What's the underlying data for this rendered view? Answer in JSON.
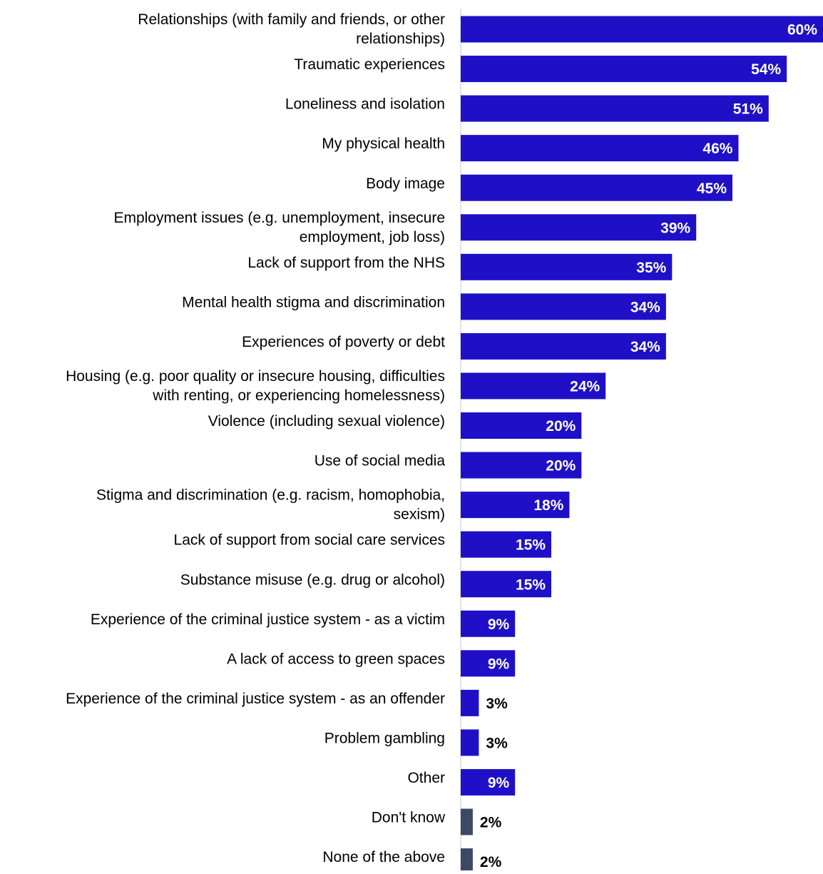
{
  "chart_data": {
    "type": "bar",
    "orientation": "horizontal",
    "categories": [
      "Relationships (with family and friends, or other relationships)",
      "Traumatic experiences",
      "Loneliness and isolation",
      "My physical health",
      "Body image",
      "Employment issues (e.g. unemployment, insecure employment, job loss)",
      "Lack of support from the NHS",
      "Mental health stigma and discrimination",
      "Experiences of poverty or debt",
      "Housing (e.g. poor quality or insecure housing, difficulties with renting, or experiencing homelessness)",
      "Violence (including sexual violence)",
      "Use of social media",
      "Stigma and discrimination (e.g. racism, homophobia, sexism)",
      "Lack of support from social care services",
      "Substance misuse (e.g. drug or alcohol)",
      "Experience of the criminal justice system - as a victim",
      "A lack of access to green spaces",
      "Experience of the criminal justice system - as an offender",
      "Problem gambling",
      "Other",
      "Don't know",
      "None of the above"
    ],
    "category_lines": [
      [
        "Relationships (with family and friends, or other",
        "relationships)"
      ],
      [
        "Traumatic experiences"
      ],
      [
        "Loneliness and isolation"
      ],
      [
        "My physical health"
      ],
      [
        "Body image"
      ],
      [
        "Employment issues (e.g. unemployment, insecure",
        "employment, job loss)"
      ],
      [
        "Lack of support from the NHS"
      ],
      [
        "Mental health stigma and discrimination"
      ],
      [
        "Experiences of poverty or debt"
      ],
      [
        "Housing (e.g. poor quality or insecure housing, difficulties",
        "with renting, or experiencing homelessness)"
      ],
      [
        "Violence (including sexual violence)"
      ],
      [
        "Use of social media"
      ],
      [
        "Stigma and discrimination (e.g. racism, homophobia,",
        "sexism)"
      ],
      [
        "Lack of support from social care services"
      ],
      [
        "Substance misuse (e.g. drug or alcohol)"
      ],
      [
        "Experience of the criminal justice system - as a victim"
      ],
      [
        "A lack of access to green spaces"
      ],
      [
        "Experience of the criminal justice system - as an offender"
      ],
      [
        "Problem gambling"
      ],
      [
        "Other"
      ],
      [
        "Don't know"
      ],
      [
        "None of the above"
      ]
    ],
    "values": [
      60,
      54,
      51,
      46,
      45,
      39,
      35,
      34,
      34,
      24,
      20,
      20,
      18,
      15,
      15,
      9,
      9,
      3,
      3,
      9,
      2,
      2
    ],
    "value_labels": [
      "60%",
      "54%",
      "51%",
      "46%",
      "45%",
      "39%",
      "35%",
      "34%",
      "34%",
      "24%",
      "20%",
      "20%",
      "18%",
      "15%",
      "15%",
      "9%",
      "9%",
      "3%",
      "3%",
      "9%",
      "2%",
      "2%"
    ],
    "bar_group": [
      "main",
      "main",
      "main",
      "main",
      "main",
      "main",
      "main",
      "main",
      "main",
      "main",
      "main",
      "main",
      "main",
      "main",
      "main",
      "main",
      "main",
      "main",
      "main",
      "main",
      "neutral",
      "neutral"
    ],
    "colors": {
      "main": "#1f10c8",
      "neutral": "#3b4b66",
      "label_inside": "#ffffff",
      "label_outside": "#000000",
      "category_text": "#000000",
      "axis": "#c8c8c8"
    },
    "xlim": [
      0,
      60
    ],
    "grid": false,
    "legend": "none",
    "title": "",
    "xlabel": "",
    "ylabel": ""
  }
}
